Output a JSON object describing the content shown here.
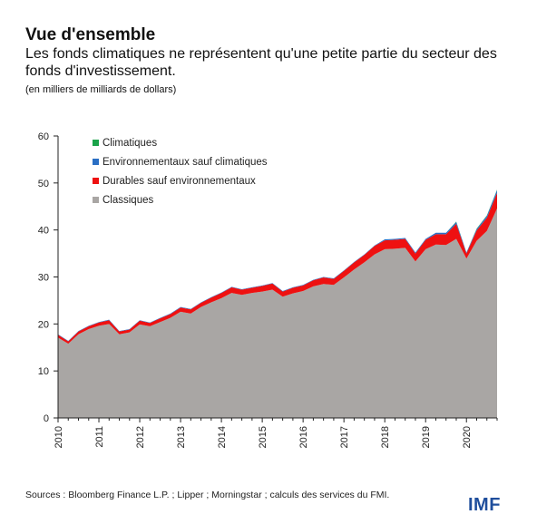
{
  "header": {
    "title": "Vue d'ensemble",
    "subtitle": "Les fonds climatiques ne représentent qu'une petite partie du secteur des fonds d'investissement.",
    "units": "(en milliers de milliards de dollars)"
  },
  "footer": {
    "source": "Sources : Bloomberg Finance L.P. ; Lipper ; Morningstar ; calculs des services du FMI.",
    "logo": "IMF"
  },
  "colors": {
    "brand": "#1f4e9c",
    "climatiques": "#1aa34a",
    "environnementaux": "#2a6fc4",
    "durables": "#ee1111",
    "classiques": "#a9a6a4"
  },
  "chart_data": {
    "type": "area",
    "stacked": true,
    "title": "",
    "xlabel": "",
    "ylabel": "",
    "ylim": [
      0,
      60
    ],
    "yticks": [
      0,
      10,
      20,
      30,
      40,
      50,
      60
    ],
    "xlim": [
      2010.0,
      2020.75
    ],
    "xticks": [
      "2010",
      "2011",
      "2012",
      "2013",
      "2014",
      "2015",
      "2016",
      "2017",
      "2018",
      "2019",
      "2020"
    ],
    "legend_position": "top-left",
    "grid": false,
    "x": [
      2010.0,
      2010.25,
      2010.5,
      2010.75,
      2011.0,
      2011.25,
      2011.5,
      2011.75,
      2012.0,
      2012.25,
      2012.5,
      2012.75,
      2013.0,
      2013.25,
      2013.5,
      2013.75,
      2014.0,
      2014.25,
      2014.5,
      2014.75,
      2015.0,
      2015.25,
      2015.5,
      2015.75,
      2016.0,
      2016.25,
      2016.5,
      2016.75,
      2017.0,
      2017.25,
      2017.5,
      2017.75,
      2018.0,
      2018.25,
      2018.5,
      2018.75,
      2019.0,
      2019.25,
      2019.5,
      2019.75,
      2020.0,
      2020.25,
      2020.5,
      2020.75
    ],
    "series": [
      {
        "name": "Classiques",
        "color_key": "classiques",
        "values": [
          17.1,
          15.8,
          17.8,
          18.9,
          19.6,
          20.0,
          17.8,
          18.2,
          19.9,
          19.5,
          20.4,
          21.3,
          22.6,
          22.2,
          23.6,
          24.6,
          25.5,
          26.6,
          26.2,
          26.6,
          26.9,
          27.3,
          25.8,
          26.5,
          27.0,
          28.0,
          28.5,
          28.3,
          29.9,
          31.6,
          33.1,
          34.8,
          35.9,
          36.0,
          36.2,
          33.3,
          35.9,
          36.9,
          36.8,
          38.1,
          33.9,
          37.7,
          39.8,
          44.6
        ]
      },
      {
        "name": "Durables sauf environnementaux",
        "color_key": "durables",
        "values": [
          0.6,
          0.5,
          0.6,
          0.6,
          0.7,
          0.8,
          0.6,
          0.6,
          0.8,
          0.7,
          0.8,
          0.8,
          0.9,
          0.9,
          0.9,
          1.0,
          1.1,
          1.2,
          1.1,
          1.1,
          1.2,
          1.3,
          1.1,
          1.2,
          1.2,
          1.3,
          1.4,
          1.3,
          1.4,
          1.5,
          1.6,
          1.8,
          1.9,
          1.9,
          1.9,
          1.7,
          2.0,
          2.2,
          2.3,
          3.2,
          1.1,
          2.2,
          2.8,
          3.3
        ]
      },
      {
        "name": "Environnementaux sauf climatiques",
        "color_key": "environnementaux",
        "values": [
          0.1,
          0.1,
          0.1,
          0.1,
          0.1,
          0.1,
          0.1,
          0.1,
          0.1,
          0.1,
          0.1,
          0.1,
          0.1,
          0.1,
          0.1,
          0.1,
          0.1,
          0.1,
          0.1,
          0.1,
          0.1,
          0.1,
          0.1,
          0.1,
          0.1,
          0.1,
          0.1,
          0.1,
          0.1,
          0.1,
          0.1,
          0.1,
          0.2,
          0.2,
          0.2,
          0.2,
          0.2,
          0.3,
          0.3,
          0.4,
          0.2,
          0.3,
          0.4,
          0.6
        ]
      },
      {
        "name": "Climatiques",
        "color_key": "climatiques",
        "values": [
          0.0,
          0.0,
          0.0,
          0.0,
          0.0,
          0.0,
          0.0,
          0.0,
          0.0,
          0.0,
          0.0,
          0.0,
          0.0,
          0.0,
          0.0,
          0.0,
          0.0,
          0.0,
          0.0,
          0.0,
          0.0,
          0.0,
          0.0,
          0.0,
          0.0,
          0.0,
          0.0,
          0.0,
          0.0,
          0.0,
          0.0,
          0.0,
          0.0,
          0.0,
          0.0,
          0.0,
          0.0,
          0.0,
          0.0,
          0.1,
          0.0,
          0.1,
          0.1,
          0.1
        ]
      }
    ],
    "legend": [
      "Climatiques",
      "Environnementaux sauf climatiques",
      "Durables sauf environnementaux",
      "Classiques"
    ]
  }
}
